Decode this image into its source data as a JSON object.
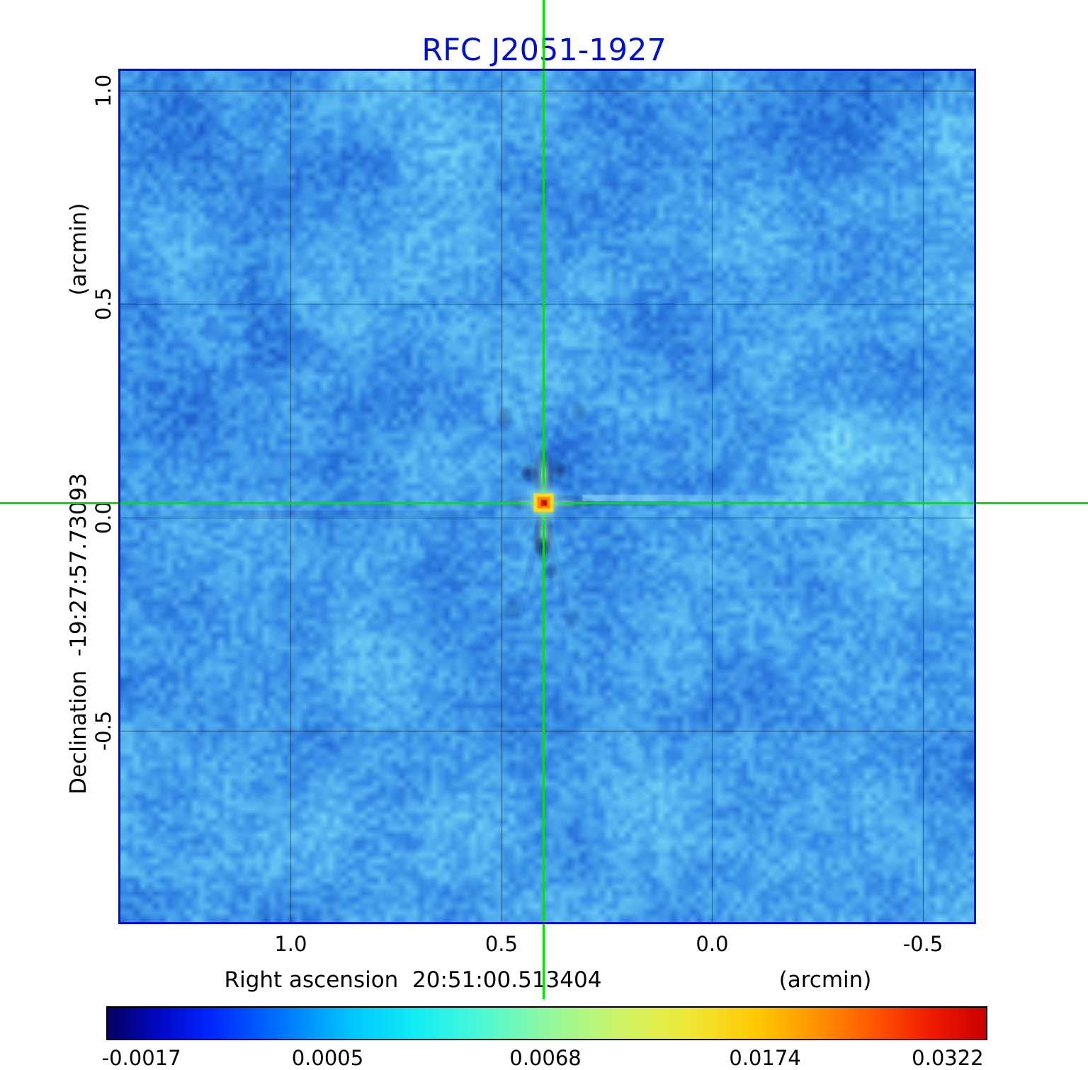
{
  "title": "RFC J2051-1927",
  "axes": {
    "y": {
      "unit_label": "(arcmin)",
      "axis_label": "Declination  -19:27:57.73093",
      "ticks": [
        "1.0",
        "0.5",
        "0.0",
        "-0.5"
      ]
    },
    "x": {
      "axis_label": "Right ascension  20:51:00.513404",
      "unit_label": "(arcmin)",
      "ticks": [
        "1.0",
        "0.5",
        "0.0",
        "-0.5"
      ]
    }
  },
  "colorbar": {
    "ticks": [
      "-0.0017",
      "0.0005",
      "0.0068",
      "0.0174",
      "0.0322"
    ]
  },
  "colors": {
    "title": "#0011cc",
    "plot_border": "#0010c8",
    "crosshair": "#00e400"
  },
  "chart_data": {
    "type": "heatmap",
    "title": "RFC J2051-1927",
    "xlabel": "Right ascension  20:51:00.513404 (arcmin)",
    "ylabel": "Declination  -19:27:57.73093 (arcmin)",
    "x_ticks": [
      1.0,
      0.5,
      0.0,
      -0.5
    ],
    "y_ticks": [
      1.0,
      0.5,
      0.0,
      -0.5
    ],
    "x_range": [
      1.404,
      -0.621
    ],
    "y_range": [
      1.046,
      -0.947
    ],
    "grid": true,
    "colormap": "jet",
    "colorbar_ticks": [
      -0.0017,
      0.0005,
      0.0068,
      0.0174,
      0.0322
    ],
    "background_level": 0.0005,
    "peak": {
      "x": 0.4,
      "y": 0.035,
      "value": 0.0322
    },
    "crosshair": {
      "x": 0.4,
      "y": 0.035,
      "color": "#00e400"
    }
  }
}
